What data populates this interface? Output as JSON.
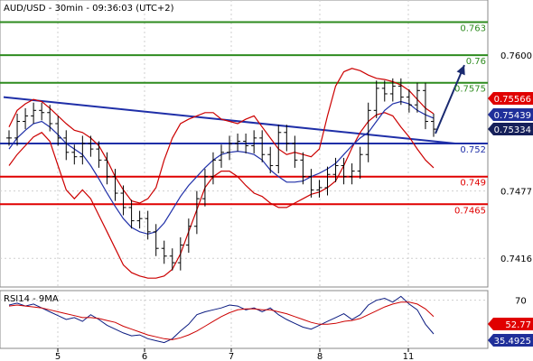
{
  "header": {
    "title": "AUD/USD - 30min - 09:36:03 (UTC+2)"
  },
  "colors": {
    "price_bars": "#000000",
    "bollinger": "#cc0000",
    "moving_average": "#1f2fa8",
    "trendline": "#1f2fa8",
    "resistance": "#2e8b1f",
    "support_red": "#e00000",
    "support_blue": "#1f2fa8",
    "arrow": "#1a2a70",
    "rsi": "#0a1a80",
    "rsi_ma": "#cc0000",
    "label_red_bg": "#e00000",
    "label_blue_bg": "#1f2f9a",
    "label_dark_bg": "#16205a"
  },
  "chart_data": [
    {
      "type": "line",
      "title": "AUD/USD - 30min - 09:36:03 (UTC+2)",
      "ylim": [
        0.739,
        0.765
      ],
      "y_ticks": [
        {
          "value": 0.76,
          "label": "0.7600"
        },
        {
          "value": 0.7477,
          "label": "0.7477"
        },
        {
          "value": 0.7416,
          "label": "0.7416"
        }
      ],
      "x_ticks": [
        {
          "x": 5,
          "label": "5"
        },
        {
          "x": 6,
          "label": "6"
        },
        {
          "x": 7,
          "label": "7"
        },
        {
          "x": 8,
          "label": "8"
        },
        {
          "x": 11,
          "label": "11"
        }
      ],
      "levels": [
        {
          "value": 0.763,
          "label": "0.763",
          "role": "resistance"
        },
        {
          "value": 0.76,
          "label": "0.76",
          "role": "resistance"
        },
        {
          "value": 0.7575,
          "label": "0.7575",
          "role": "resistance"
        },
        {
          "value": 0.752,
          "label": "0.752",
          "role": "support-blue"
        },
        {
          "value": 0.749,
          "label": "0.749",
          "role": "support-red"
        },
        {
          "value": 0.7465,
          "label": "0.7465",
          "role": "support-red"
        }
      ],
      "price_labels": [
        {
          "value": 0.75566,
          "label": "0.75566",
          "style": "red"
        },
        {
          "value": 0.75439,
          "label": "0.75439",
          "style": "blue"
        },
        {
          "value": 0.75334,
          "label": "0.75334",
          "style": "dark"
        }
      ],
      "price_close": [
        0.7525,
        0.754,
        0.7545,
        0.755,
        0.7548,
        0.7538,
        0.7525,
        0.7512,
        0.7508,
        0.752,
        0.7515,
        0.7505,
        0.749,
        0.7475,
        0.7462,
        0.745,
        0.7452,
        0.744,
        0.7425,
        0.7418,
        0.7412,
        0.7428,
        0.7445,
        0.747,
        0.749,
        0.7505,
        0.7512,
        0.752,
        0.7522,
        0.7518,
        0.7525,
        0.751,
        0.75,
        0.753,
        0.752,
        0.7505,
        0.749,
        0.7478,
        0.748,
        0.7492,
        0.75,
        0.749,
        0.7495,
        0.751,
        0.755,
        0.757,
        0.7565,
        0.7572,
        0.7562,
        0.7555,
        0.7568,
        0.754,
        0.7533
      ],
      "bollinger_upper": [
        0.7535,
        0.755,
        0.7556,
        0.756,
        0.7558,
        0.7552,
        0.7545,
        0.7538,
        0.7532,
        0.753,
        0.7525,
        0.7518,
        0.7505,
        0.749,
        0.7478,
        0.7468,
        0.7466,
        0.747,
        0.748,
        0.7505,
        0.7525,
        0.7538,
        0.7542,
        0.7545,
        0.7548,
        0.7548,
        0.7542,
        0.754,
        0.7538,
        0.7542,
        0.7545,
        0.7535,
        0.7525,
        0.7515,
        0.751,
        0.7512,
        0.751,
        0.7508,
        0.7515,
        0.7545,
        0.7572,
        0.7585,
        0.7588,
        0.7586,
        0.7582,
        0.7579,
        0.7578,
        0.7576,
        0.7573,
        0.7568,
        0.756,
        0.7552,
        0.7547
      ],
      "bollinger_lower": [
        0.75,
        0.751,
        0.7518,
        0.7526,
        0.753,
        0.7522,
        0.75,
        0.7478,
        0.747,
        0.7478,
        0.747,
        0.7455,
        0.744,
        0.7425,
        0.741,
        0.7403,
        0.74,
        0.7398,
        0.7398,
        0.74,
        0.7406,
        0.742,
        0.744,
        0.746,
        0.748,
        0.749,
        0.7495,
        0.7495,
        0.749,
        0.7482,
        0.7475,
        0.7472,
        0.7466,
        0.7462,
        0.7462,
        0.7466,
        0.747,
        0.7474,
        0.7476,
        0.748,
        0.7486,
        0.75,
        0.7516,
        0.753,
        0.754,
        0.7546,
        0.7548,
        0.7545,
        0.7535,
        0.7526,
        0.7515,
        0.7505,
        0.7498
      ],
      "moving_average": [
        0.7515,
        0.7525,
        0.7532,
        0.7538,
        0.754,
        0.7535,
        0.7528,
        0.752,
        0.7515,
        0.751,
        0.75,
        0.7488,
        0.7475,
        0.7463,
        0.7452,
        0.7444,
        0.744,
        0.7438,
        0.744,
        0.7448,
        0.746,
        0.7472,
        0.7482,
        0.749,
        0.7498,
        0.7505,
        0.751,
        0.7512,
        0.7513,
        0.7512,
        0.751,
        0.7505,
        0.7496,
        0.749,
        0.7485,
        0.7485,
        0.7486,
        0.749,
        0.7493,
        0.7497,
        0.7502,
        0.751,
        0.7518,
        0.7525,
        0.753,
        0.754,
        0.755,
        0.7556,
        0.7558,
        0.7556,
        0.755,
        0.7546,
        0.7543
      ],
      "trendline": [
        [
          0,
          0.7562
        ],
        [
          1,
          0.752
        ]
      ],
      "arrow": {
        "from_value": 0.7529,
        "to_value": 0.7591
      }
    },
    {
      "type": "line",
      "title": "RSI14 - 9MA",
      "ylim": [
        20,
        80
      ],
      "y_ticks": [
        {
          "value": 70,
          "label": "70"
        }
      ],
      "current_labels": [
        {
          "value": 52.77,
          "label": "52.77",
          "style": "red"
        },
        {
          "value": 35.4925,
          "label": "35.4925",
          "style": "blue"
        }
      ],
      "series": [
        {
          "role": "rsi",
          "values": [
            65,
            67,
            64,
            66,
            62,
            58,
            54,
            50,
            52,
            48,
            55,
            50,
            44,
            40,
            36,
            33,
            34,
            30,
            28,
            26,
            30,
            38,
            45,
            55,
            58,
            60,
            62,
            65,
            64,
            60,
            62,
            58,
            62,
            55,
            50,
            46,
            42,
            40,
            44,
            48,
            52,
            56,
            50,
            55,
            65,
            70,
            72,
            68,
            74,
            66,
            60,
            45,
            35
          ]
        },
        {
          "role": "rsi_ma",
          "values": [
            64,
            65,
            64,
            63,
            62,
            60,
            58,
            56,
            54,
            52,
            52,
            51,
            49,
            47,
            43,
            40,
            37,
            34,
            32,
            30,
            29,
            31,
            34,
            38,
            43,
            48,
            53,
            57,
            60,
            61,
            61,
            60,
            60,
            58,
            56,
            53,
            50,
            47,
            45,
            45,
            46,
            48,
            49,
            51,
            55,
            59,
            63,
            66,
            68,
            68,
            66,
            61,
            53
          ]
        }
      ]
    }
  ]
}
